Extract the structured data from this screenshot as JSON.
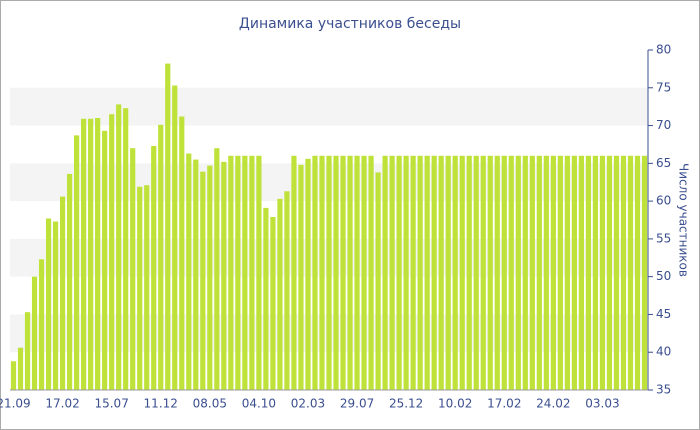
{
  "chart_data": {
    "type": "bar",
    "title": "Динамика участников беседы",
    "y_label": "Число участников",
    "categories": [
      "21.09",
      null,
      null,
      null,
      null,
      null,
      null,
      "17.02",
      null,
      null,
      null,
      null,
      null,
      null,
      "15.07",
      null,
      null,
      null,
      null,
      null,
      null,
      "11.12",
      null,
      null,
      null,
      null,
      null,
      null,
      "08.05",
      null,
      null,
      null,
      null,
      null,
      null,
      "04.10",
      null,
      null,
      null,
      null,
      null,
      null,
      "02.03",
      null,
      null,
      null,
      null,
      null,
      null,
      "29.07",
      null,
      null,
      null,
      null,
      null,
      null,
      "25.12",
      null,
      null,
      null,
      null,
      null,
      null,
      "10.02",
      null,
      null,
      null,
      null,
      null,
      null,
      "17.02",
      null,
      null,
      null,
      null,
      null,
      null,
      "24.02",
      null,
      null,
      null,
      null,
      null,
      null,
      "03.03",
      null,
      null,
      null,
      null,
      null,
      null
    ],
    "values": [
      38.8,
      40.6,
      45.3,
      50,
      52.3,
      57.7,
      57.3,
      60.6,
      63.6,
      68.7,
      70.9,
      70.9,
      71,
      69.3,
      71.5,
      72.8,
      72.3,
      67,
      61.9,
      62.1,
      67.3,
      70.1,
      78.2,
      75.3,
      71.2,
      66.3,
      65.5,
      63.9,
      64.7,
      67,
      65.2,
      66,
      66,
      66,
      66,
      66,
      59.1,
      57.9,
      60.3,
      61.3,
      66,
      64.8,
      65.6,
      66,
      66,
      66,
      66,
      66,
      66,
      66,
      66,
      66,
      63.8,
      66,
      66,
      66,
      66,
      66,
      66,
      66,
      66,
      66,
      66,
      66,
      66,
      66,
      66,
      66,
      66,
      66,
      66,
      66,
      66,
      66,
      66,
      66,
      66,
      66,
      66,
      66,
      66,
      66,
      66,
      66,
      66,
      66,
      66,
      66,
      66,
      66,
      66
    ],
    "color": "#bfe23a",
    "ylim": [
      35,
      80
    ],
    "yticks": [
      35,
      40,
      45,
      50,
      55,
      60,
      65,
      70,
      75,
      80
    ],
    "grid": true
  }
}
